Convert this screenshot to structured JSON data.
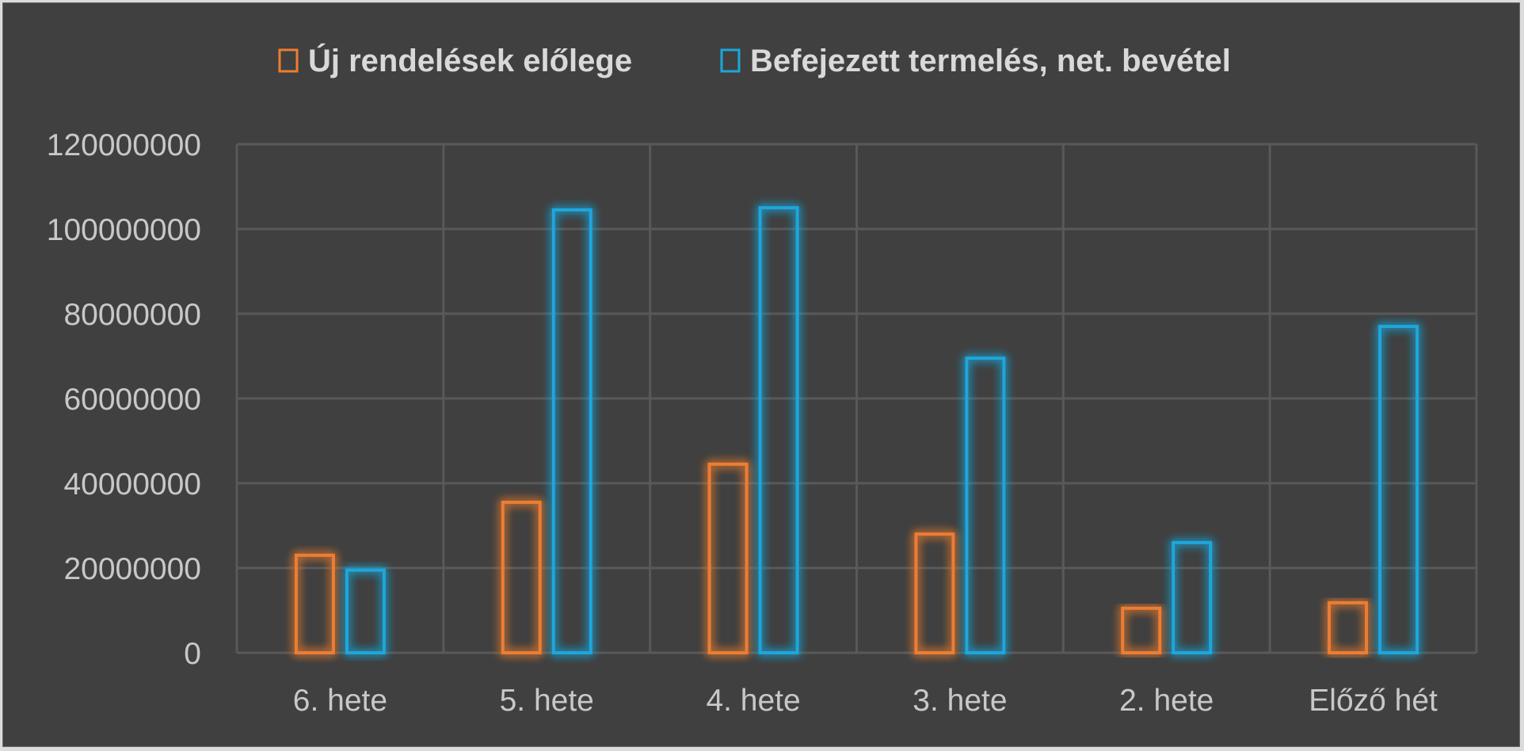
{
  "chart_data": {
    "type": "bar",
    "categories": [
      "6. hete",
      "5. hete",
      "4. hete",
      "3. hete",
      "2. hete",
      "Előző hét"
    ],
    "series": [
      {
        "name": "Új rendelések előlege",
        "color": "#ed7d31",
        "values": [
          23000000,
          35500000,
          44500000,
          28000000,
          10500000,
          11800000
        ]
      },
      {
        "name": "Befejezett termelés, net. bevétel",
        "color": "#1aa7dd",
        "values": [
          19500000,
          104500000,
          105000000,
          69500000,
          26000000,
          77000000
        ]
      }
    ],
    "ylim": [
      0,
      120000000
    ],
    "yticks": [
      "0",
      "20000000",
      "40000000",
      "60000000",
      "80000000",
      "100000000",
      "120000000"
    ],
    "grid": true,
    "legend_position": "top",
    "background_color": "#404040",
    "grid_color": "#595959"
  }
}
